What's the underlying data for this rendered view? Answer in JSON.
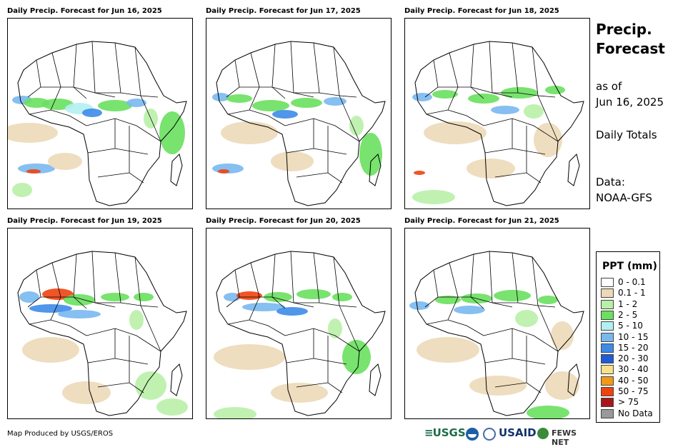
{
  "panels": [
    {
      "title": "Daily Precip. Forecast for Jun 16, 2025"
    },
    {
      "title": "Daily Precip. Forecast for Jun 17, 2025"
    },
    {
      "title": "Daily Precip. Forecast for Jun 18, 2025"
    },
    {
      "title": "Daily Precip. Forecast for Jun 19, 2025"
    },
    {
      "title": "Daily Precip. Forecast for Jun 20, 2025"
    },
    {
      "title": "Daily Precip. Forecast for Jun 21, 2025"
    }
  ],
  "side": {
    "title_line1": "Precip.",
    "title_line2": "Forecast",
    "asof_line1": "as of",
    "asof_line2": "Jun 16, 2025",
    "totals": "Daily Totals",
    "data_label": "Data:",
    "data_source": "NOAA-GFS"
  },
  "legend": {
    "title": "PPT (mm)",
    "items": [
      {
        "label": "0 - 0.1",
        "color": "#ffffff"
      },
      {
        "label": "0.1 - 1",
        "color": "#ecd9b8"
      },
      {
        "label": "1 - 2",
        "color": "#b9efa9"
      },
      {
        "label": "2 - 5",
        "color": "#69e05e"
      },
      {
        "label": "5 - 10",
        "color": "#b3eff2"
      },
      {
        "label": "10 - 15",
        "color": "#79b8ef"
      },
      {
        "label": "15 - 20",
        "color": "#3d8be8"
      },
      {
        "label": "20 - 30",
        "color": "#1f5cd6"
      },
      {
        "label": "30 - 40",
        "color": "#f7e18a"
      },
      {
        "label": "40 - 50",
        "color": "#f29a18"
      },
      {
        "label": "50 - 75",
        "color": "#f0420e"
      },
      {
        "label": "> 75",
        "color": "#a8161a"
      },
      {
        "label": "No Data",
        "color": "#999999"
      }
    ]
  },
  "credit": "Map Produced by USGS/EROS",
  "logos": {
    "usgs": "USGS",
    "noaa": "NOAA",
    "usaid": "USAID",
    "fews": "FEWS NET"
  }
}
